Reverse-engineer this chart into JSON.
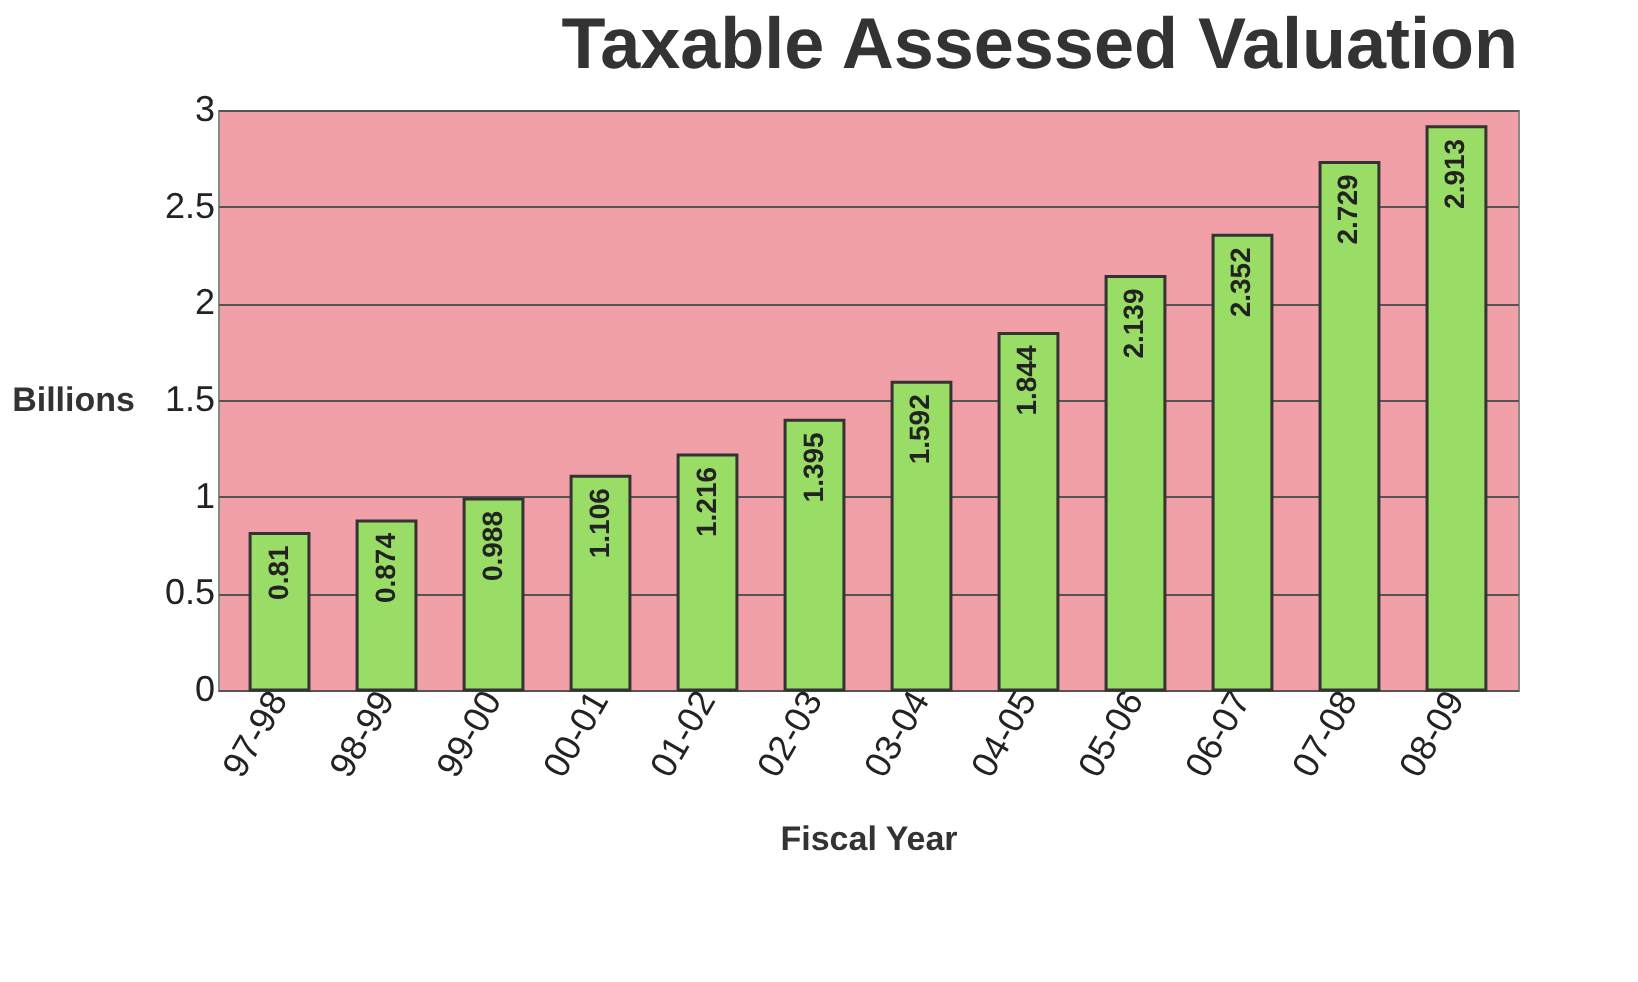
{
  "chart_data": {
    "type": "bar",
    "title": "Taxable Assessed Valuation",
    "xlabel": "Fiscal Year",
    "ylabel": "Billions",
    "categories": [
      "97-98",
      "98-99",
      "99-00",
      "00-01",
      "01-02",
      "02-03",
      "03-04",
      "04-05",
      "05-06",
      "06-07",
      "07-08",
      "08-09"
    ],
    "values": [
      0.81,
      0.874,
      0.988,
      1.106,
      1.216,
      1.395,
      1.592,
      1.844,
      2.139,
      2.352,
      2.729,
      2.913
    ],
    "color": "#99dd66",
    "ylim": [
      0,
      3
    ],
    "yticks": [
      0,
      0.5,
      1,
      1.5,
      2,
      2.5,
      3
    ],
    "grid": "y",
    "data_labels": true
  }
}
